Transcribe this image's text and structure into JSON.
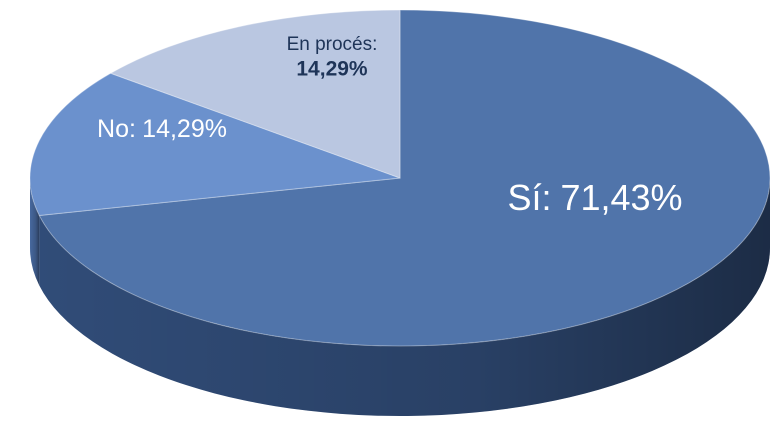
{
  "chart_data": {
    "type": "pie",
    "categories": [
      "Sí:",
      "No:",
      "En procés:"
    ],
    "values": [
      71.43,
      14.29,
      14.29
    ],
    "value_labels": [
      "71,43%",
      "14,29%",
      "14,29%"
    ],
    "colors": [
      "#5074aa",
      "#6b91cd",
      "#bac7e1"
    ],
    "side_colors": [
      "#33507e",
      "#4b6ea6",
      "#8c9cbd"
    ]
  }
}
